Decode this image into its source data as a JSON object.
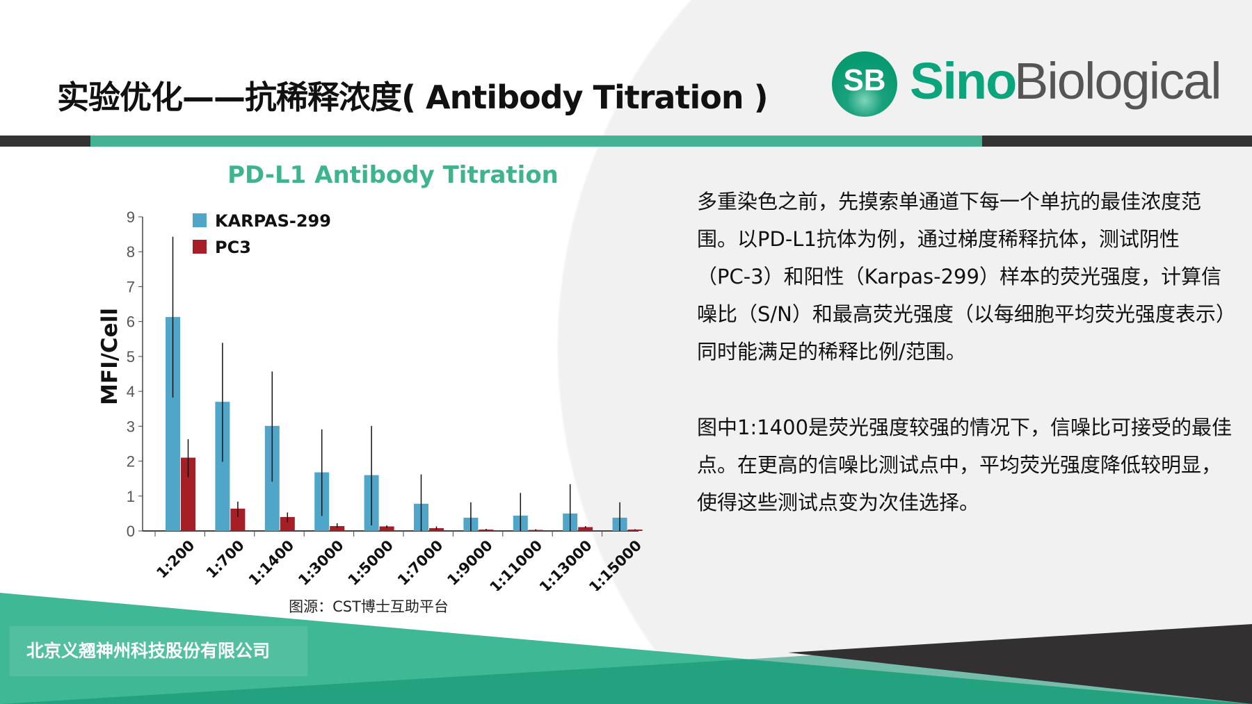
{
  "header": {
    "title": "实验优化——抗稀释浓度( Antibody Titration )",
    "logo": {
      "mark": "SB",
      "word1": "Sino",
      "word2": "Biological"
    }
  },
  "colors": {
    "accent_green": "#45b393",
    "dark": "#333333",
    "karpas": "#4fa6c9",
    "pc3": "#a61e26",
    "title_green": "#3db48c"
  },
  "chart_data": {
    "type": "bar",
    "title": "PD-L1 Antibody Titration",
    "ylabel": "MFI/Cell",
    "xlabel": "",
    "ylim": [
      0,
      9
    ],
    "yticks": [
      0,
      1,
      2,
      3,
      4,
      5,
      6,
      7,
      8,
      9
    ],
    "legend": "top-left",
    "categories": [
      "1:200",
      "1:700",
      "1:1400",
      "1:3000",
      "1:5000",
      "1:7000",
      "1:9000",
      "1:11000",
      "1:13000",
      "1:15000"
    ],
    "series": [
      {
        "name": "KARPAS-299",
        "color": "#4fa6c9",
        "values": [
          6.13,
          3.7,
          3.01,
          1.68,
          1.6,
          0.78,
          0.38,
          0.44,
          0.5,
          0.38
        ],
        "err_high": [
          8.43,
          5.39,
          4.57,
          2.91,
          3.01,
          1.62,
          0.82,
          1.09,
          1.34,
          0.82
        ],
        "err_low": [
          3.82,
          1.98,
          1.41,
          0.43,
          0.16,
          0,
          0,
          0,
          0,
          0
        ]
      },
      {
        "name": "PC3",
        "color": "#a61e26",
        "values": [
          2.1,
          0.64,
          0.4,
          0.14,
          0.13,
          0.08,
          0.04,
          0.03,
          0.11,
          0.04
        ],
        "err_high": [
          2.63,
          0.84,
          0.53,
          0.22,
          0.16,
          0.13,
          0.06,
          0.05,
          0.14,
          0.05
        ],
        "err_low": [
          1.54,
          0.4,
          0.25,
          0.09,
          0.08,
          0.04,
          0.02,
          0.01,
          0.08,
          0.02
        ]
      }
    ]
  },
  "caption": "图源：CST博士互助平台",
  "body": {
    "p1": "多重染色之前，先摸索单通道下每一个单抗的最佳浓度范围。以PD-L1抗体为例，通过梯度稀释抗体，测试阴性（PC-3）和阳性（Karpas-299）样本的荧光强度，计算信噪比（S/N）和最高荧光强度（以每细胞平均荧光强度表示）同时能满足的稀释比例/范围。",
    "p2": "图中1:1400是荧光强度较强的情况下，信噪比可接受的最佳点。在更高的信噪比测试点中，平均荧光强度降低较明显，使得这些测试点变为次佳选择。"
  },
  "footer": {
    "company": "北京义翘神州科技股份有限公司"
  }
}
